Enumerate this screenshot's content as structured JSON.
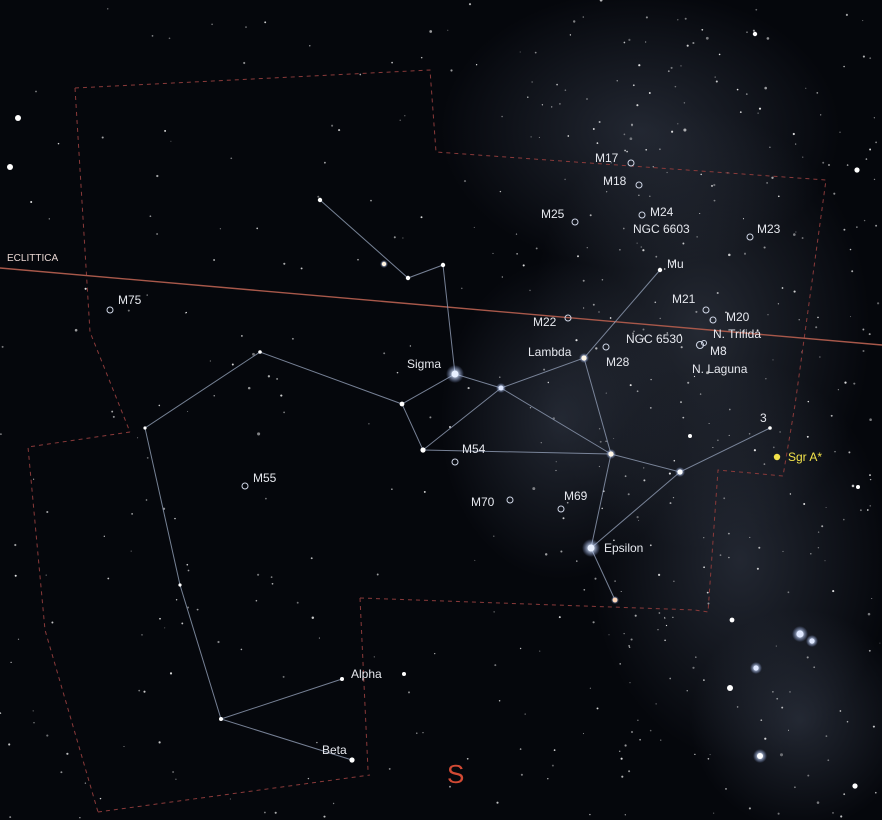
{
  "ecliptic": {
    "label": "ECLITTICA",
    "color": "#a8584a"
  },
  "direction": {
    "label": "S",
    "color": "#d24a34"
  },
  "named_stars": [
    {
      "key": "sigma",
      "label": "Sigma"
    },
    {
      "key": "lambda",
      "label": "Lambda"
    },
    {
      "key": "mu",
      "label": "Mu"
    },
    {
      "key": "epsilon",
      "label": "Epsilon"
    },
    {
      "key": "alpha",
      "label": "Alpha"
    },
    {
      "key": "beta",
      "label": "Beta"
    },
    {
      "key": "three",
      "label": "3"
    }
  ],
  "deep_sky": [
    {
      "key": "m17",
      "label": "M17"
    },
    {
      "key": "m18",
      "label": "M18"
    },
    {
      "key": "m25",
      "label": "M25"
    },
    {
      "key": "m24",
      "label": "M24"
    },
    {
      "key": "ngc6603",
      "label": "NGC 6603"
    },
    {
      "key": "m23",
      "label": "M23"
    },
    {
      "key": "m75",
      "label": "M75"
    },
    {
      "key": "m21",
      "label": "M21"
    },
    {
      "key": "m20",
      "label": "M20"
    },
    {
      "key": "trifida",
      "label": "N. Trifida"
    },
    {
      "key": "m22",
      "label": "M22"
    },
    {
      "key": "ngc6530",
      "label": "NGC 6530"
    },
    {
      "key": "m8",
      "label": "M8"
    },
    {
      "key": "m28",
      "label": "M28"
    },
    {
      "key": "laguna",
      "label": "N. Laguna"
    },
    {
      "key": "m54",
      "label": "M54"
    },
    {
      "key": "m55",
      "label": "M55"
    },
    {
      "key": "m70",
      "label": "M70"
    },
    {
      "key": "m69",
      "label": "M69"
    }
  ],
  "galactic_center": {
    "label": "Sgr A*",
    "color": "#f2e24a"
  },
  "colors": {
    "background": "#05070c",
    "constellation_lines": "#8a96ad",
    "boundaries": "#8a3a3a"
  }
}
